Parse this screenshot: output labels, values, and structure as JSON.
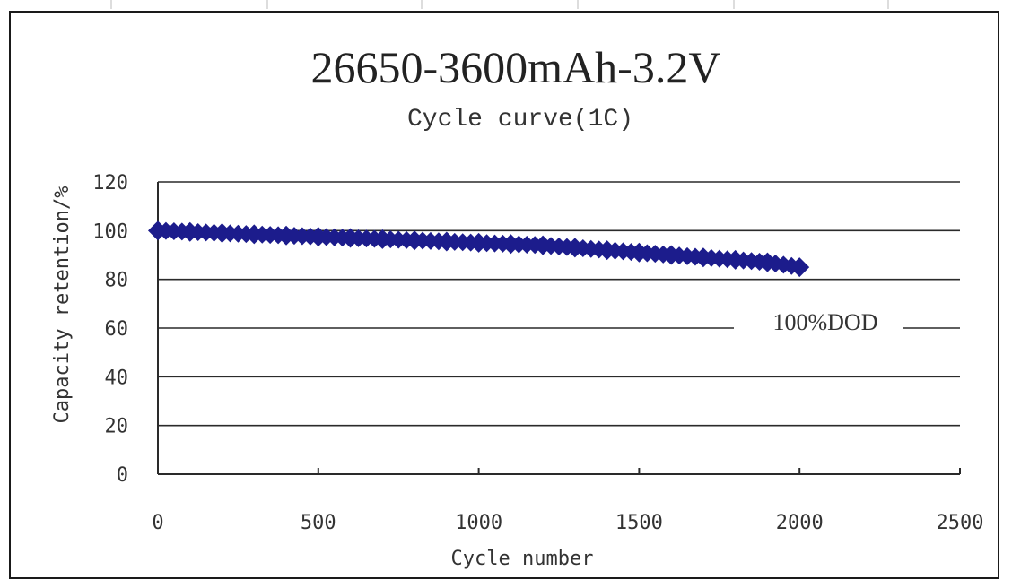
{
  "chart_data": {
    "type": "scatter",
    "title": "26650-3600mAh-3.2V",
    "subtitle": "Cycle curve(1C)",
    "xlabel": "Cycle number",
    "ylabel": "Capacity retention/%",
    "xlim": [
      0,
      2500
    ],
    "ylim": [
      0,
      120
    ],
    "xticks": [
      "0",
      "500",
      "1000",
      "1500",
      "2000",
      "2500"
    ],
    "yticks": [
      "0",
      "20",
      "40",
      "60",
      "80",
      "100",
      "120"
    ],
    "grid": "horizontal",
    "annotation": "100%DOD",
    "series": [
      {
        "color": "#1c1c8c",
        "x": [
          0,
          100,
          200,
          300,
          400,
          500,
          600,
          700,
          800,
          900,
          1000,
          1100,
          1200,
          1300,
          1400,
          1500,
          1600,
          1700,
          1800,
          1900,
          2000
        ],
        "y": [
          100,
          99.5,
          99,
          98.5,
          98,
          97.5,
          97,
          96.5,
          96,
          95.5,
          95,
          94.5,
          94,
          93,
          92,
          91,
          90,
          89,
          88,
          87,
          85
        ]
      }
    ]
  }
}
